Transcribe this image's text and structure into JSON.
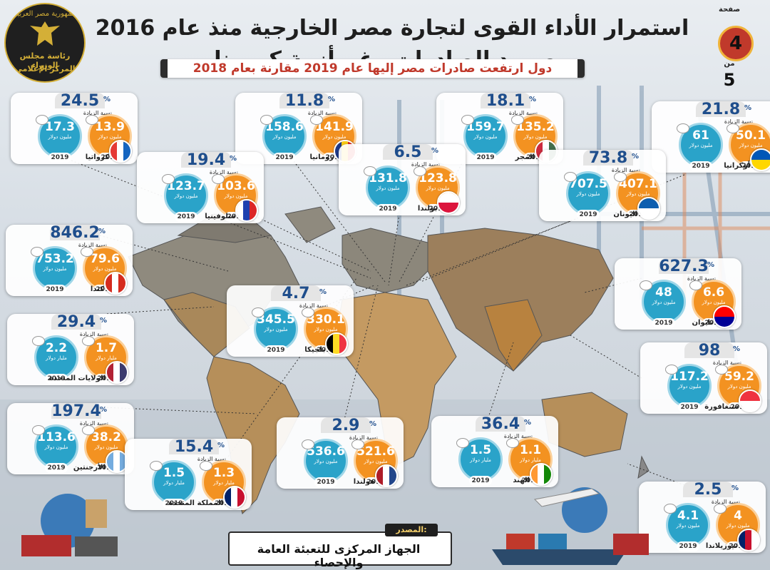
{
  "header": {
    "title": "استمرار الأداء القوى لتجارة مصر الخارجية منذ عام 2016 وصمود الصادرات رغم أزمة كورونا",
    "subtitle": "دول ارتفعت صادرات مصر إليها عام 2019 مقارنة بعام 2018",
    "page_word": "صفحة",
    "page_current": "4",
    "page_of": "من",
    "page_total": "5"
  },
  "logo": {
    "line1": "جمهورية مصر العربية",
    "line2": "رئاسة مجلس الوزراء",
    "line3": "المركز الإعلامي"
  },
  "labels": {
    "increase": "نسبة الزيادة",
    "percent": "%",
    "year_2018": "2018",
    "year_2019": "2019",
    "unit_million": "مليون دولار",
    "unit_billion": "مليار دولار"
  },
  "footer": {
    "tag": "المصدر:",
    "source": "الجهاز المركزى للتعبئة العامة والإحصاء"
  },
  "countries": [
    {
      "name": "كرواتيا",
      "pct": "24.5",
      "v2018": "13.9",
      "v2019": "17.3",
      "unit18": "مليون دولار",
      "unit19": "مليون دولار",
      "flag_colors": [
        "#e53935",
        "#ffffff",
        "#1565c0"
      ]
    },
    {
      "name": "رومانيا",
      "pct": "11.8",
      "v2018": "141.9",
      "v2019": "158.6",
      "unit18": "مليون دولار",
      "unit19": "مليون دولار",
      "flag_colors": [
        "#1e3a8a",
        "#facc15",
        "#dc2626"
      ]
    },
    {
      "name": "المجر",
      "pct": "18.1",
      "v2018": "135.2",
      "v2019": "159.7",
      "unit18": "مليون دولار",
      "unit19": "مليون دولار",
      "flag_colors": [
        "#cd2a3e",
        "#ffffff",
        "#436f4d"
      ]
    },
    {
      "name": "أوكرانيا",
      "pct": "21.8",
      "v2018": "50.1",
      "v2019": "61",
      "unit18": "مليون دولار",
      "unit19": "مليون دولار",
      "flag_colors": [
        "#0057b7",
        "#ffd700"
      ]
    },
    {
      "name": "سلوفينيا",
      "pct": "19.4",
      "v2018": "103.6",
      "v2019": "123.7",
      "unit18": "مليون دولار",
      "unit19": "مليون دولار",
      "flag_colors": [
        "#ffffff",
        "#1e40af",
        "#dc2626"
      ]
    },
    {
      "name": "بولندا",
      "pct": "6.5",
      "v2018": "123.8",
      "v2019": "131.8",
      "unit18": "مليون دولار",
      "unit19": "مليون دولار",
      "flag_colors": [
        "#ffffff",
        "#dc143c"
      ]
    },
    {
      "name": "اليونان",
      "pct": "73.8",
      "v2018": "407.1",
      "v2019": "707.5",
      "unit18": "مليون دولار",
      "unit19": "مليون دولار",
      "flag_colors": [
        "#0d5eaf",
        "#ffffff"
      ]
    },
    {
      "name": "كندا",
      "pct": "846.2",
      "v2018": "79.6",
      "v2019": "753.2",
      "unit18": "مليون دولار",
      "unit19": "مليون دولار",
      "flag_colors": [
        "#d52b1e",
        "#ffffff",
        "#d52b1e"
      ]
    },
    {
      "name": "تايوان",
      "pct": "627.3",
      "v2018": "6.6",
      "v2019": "48",
      "unit18": "مليون دولار",
      "unit19": "مليون دولار",
      "flag_colors": [
        "#fe0000",
        "#000095"
      ]
    },
    {
      "name": "بلجيكا",
      "pct": "4.7",
      "v2018": "330.1",
      "v2019": "345.5",
      "unit18": "مليون دولار",
      "unit19": "مليون دولار",
      "flag_colors": [
        "#000000",
        "#fdda24",
        "#ef3340"
      ]
    },
    {
      "name": "الولايات المتحدة",
      "pct": "29.4",
      "v2018": "1.7",
      "v2019": "2.2",
      "unit18": "مليار دولار",
      "unit19": "مليار دولار",
      "flag_colors": [
        "#b22234",
        "#ffffff",
        "#3c3b6e"
      ]
    },
    {
      "name": "سنغافورة",
      "pct": "98",
      "v2018": "59.2",
      "v2019": "117.2",
      "unit18": "مليون دولار",
      "unit19": "مليون دولار",
      "flag_colors": [
        "#ef3340",
        "#ffffff"
      ]
    },
    {
      "name": "الأرجنتين",
      "pct": "197.4",
      "v2018": "38.2",
      "v2019": "113.6",
      "unit18": "مليون دولار",
      "unit19": "مليون دولار",
      "flag_colors": [
        "#74acdf",
        "#ffffff",
        "#74acdf"
      ]
    },
    {
      "name": "هولندا",
      "pct": "2.9",
      "v2018": "521.6",
      "v2019": "536.6",
      "unit18": "مليون دولار",
      "unit19": "مليون دولار",
      "flag_colors": [
        "#ae1c28",
        "#ffffff",
        "#21468b"
      ]
    },
    {
      "name": "الهند",
      "pct": "36.4",
      "v2018": "1.1",
      "v2019": "1.5",
      "unit18": "مليار دولار",
      "unit19": "مليار دولار",
      "flag_colors": [
        "#ff9933",
        "#ffffff",
        "#138808"
      ]
    },
    {
      "name": "المملكة المتحدة",
      "pct": "15.4",
      "v2018": "1.3",
      "v2019": "1.5",
      "unit18": "مليار دولار",
      "unit19": "مليار دولار",
      "flag_colors": [
        "#012169",
        "#ffffff",
        "#c8102e"
      ]
    },
    {
      "name": "نيوزيلاندا",
      "pct": "2.5",
      "v2018": "4",
      "v2019": "4.1",
      "unit18": "مليون دولار",
      "unit19": "مليون دولار",
      "flag_colors": [
        "#012169",
        "#c8102e",
        "#ffffff"
      ]
    }
  ]
}
